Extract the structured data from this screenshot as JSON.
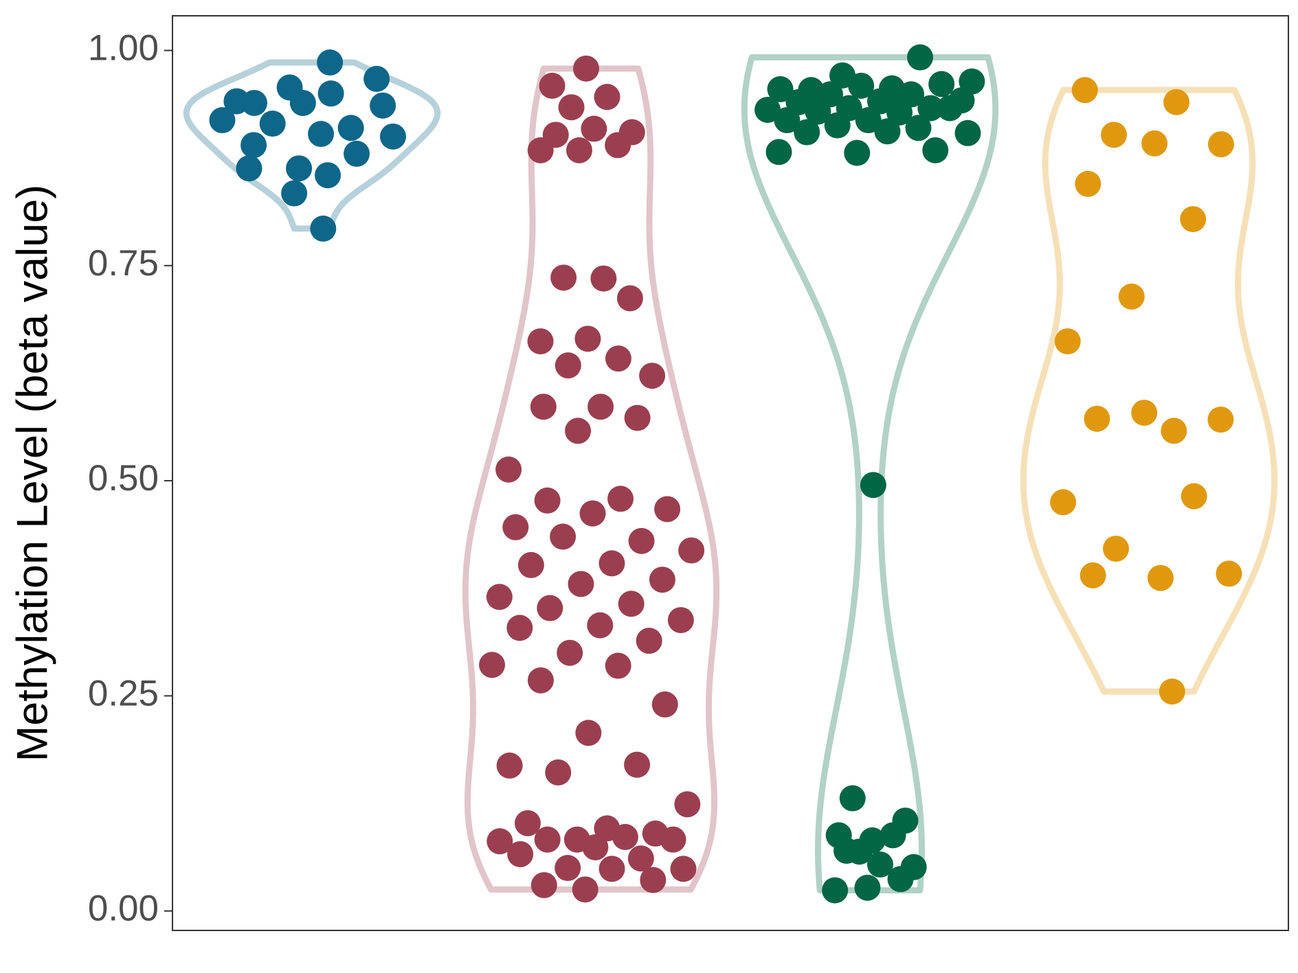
{
  "chart_data": {
    "type": "violin",
    "y_label": "Methylation Level (beta value)",
    "ylim": [
      -0.0226,
      1.0403
    ],
    "yticks": [
      {
        "value": 0,
        "label": "0.00"
      },
      {
        "value": 0.25,
        "label": "0.25"
      },
      {
        "value": 0.5,
        "label": "0.50"
      },
      {
        "value": 0.75,
        "label": "0.75"
      },
      {
        "value": 1,
        "label": "1.00"
      }
    ],
    "grid": false,
    "series": [
      {
        "color": "#0e6689",
        "values": [
          0.941,
          0.986,
          0.957,
          0.967,
          0.95,
          0.939,
          0.936,
          0.939,
          0.919,
          0.91,
          0.915,
          0.9,
          0.903,
          0.89,
          0.88,
          0.863,
          0.863,
          0.855,
          0.834,
          0.793
        ]
      },
      {
        "color": "#9b3f50",
        "values": [
          0.979,
          0.959,
          0.946,
          0.934,
          0.905,
          0.909,
          0.902,
          0.89,
          0.884,
          0.884,
          0.735,
          0.736,
          0.712,
          0.665,
          0.662,
          0.642,
          0.634,
          0.622,
          0.586,
          0.586,
          0.573,
          0.558,
          0.513,
          0.479,
          0.477,
          0.467,
          0.462,
          0.446,
          0.43,
          0.435,
          0.419,
          0.404,
          0.402,
          0.385,
          0.38,
          0.365,
          0.357,
          0.352,
          0.338,
          0.332,
          0.329,
          0.314,
          0.3,
          0.286,
          0.285,
          0.268,
          0.24,
          0.207,
          0.169,
          0.17,
          0.161,
          0.124,
          0.096,
          0.102,
          0.09,
          0.083,
          0.081,
          0.086,
          0.083,
          0.083,
          0.074,
          0.066,
          0.061,
          0.05,
          0.049,
          0.049,
          0.03,
          0.036,
          0.025
        ]
      },
      {
        "color": "#006644",
        "values": [
          0.992,
          0.971,
          0.964,
          0.956,
          0.954,
          0.961,
          0.959,
          0.955,
          0.949,
          0.949,
          0.942,
          0.941,
          0.94,
          0.933,
          0.933,
          0.931,
          0.928,
          0.929,
          0.933,
          0.919,
          0.919,
          0.91,
          0.913,
          0.904,
          0.906,
          0.905,
          0.884,
          0.881,
          0.882,
          0.495,
          0.131,
          0.105,
          0.082,
          0.088,
          0.088,
          0.069,
          0.051,
          0.054,
          0.07,
          0.037,
          0.027,
          0.024
        ]
      },
      {
        "color": "#e0990f",
        "values": [
          0.954,
          0.94,
          0.902,
          0.891,
          0.892,
          0.845,
          0.804,
          0.714,
          0.662,
          0.558,
          0.572,
          0.571,
          0.579,
          0.475,
          0.482,
          0.421,
          0.392,
          0.387,
          0.39,
          0.255
        ]
      }
    ]
  }
}
